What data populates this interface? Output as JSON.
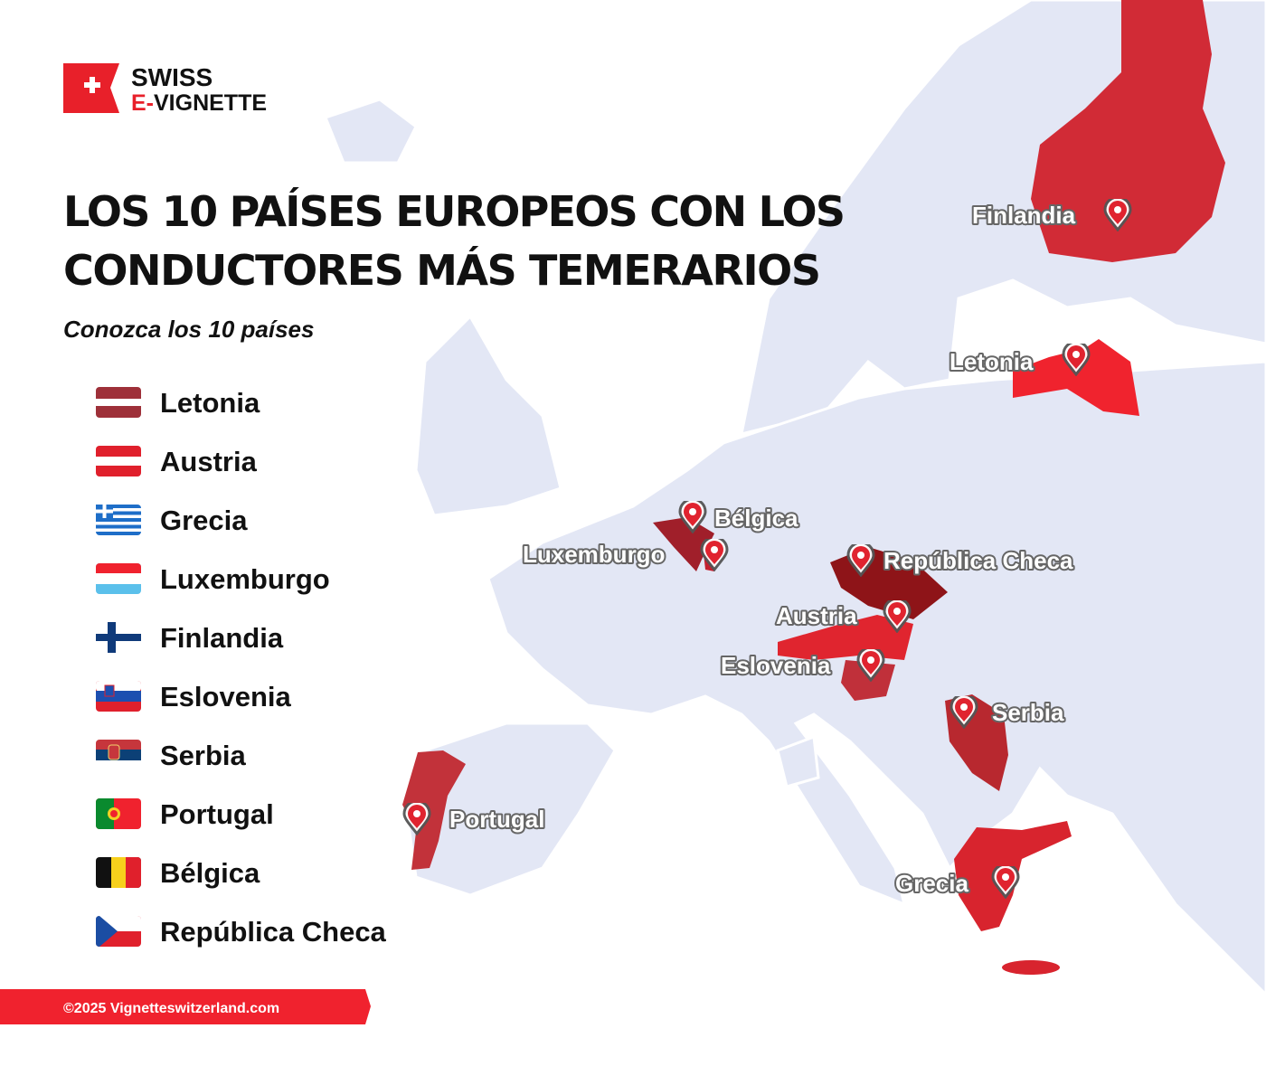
{
  "logo": {
    "line1": "SWISS",
    "line2a": "E-",
    "line2b": "VIGNETTE"
  },
  "title": {
    "line1": "LOS 10 PAÍSES EUROPEOS CON LOS",
    "line2": "CONDUCTORES MÁS TEMERARIOS"
  },
  "subtitle": "Conozca los 10 países",
  "legend": [
    "Letonia",
    "Austria",
    "Grecia",
    "Luxemburgo",
    "Finlandia",
    "Eslovenia",
    "Serbia",
    "Portugal",
    "Bélgica",
    "República Checa"
  ],
  "map_labels": [
    "Finlandia",
    "Letonia",
    "Bélgica",
    "Luxemburgo",
    "República Checa",
    "Austria",
    "Eslovenia",
    "Serbia",
    "Portugal",
    "Grecia"
  ],
  "footer": "©2025 Vignetteswitzerland.com"
}
